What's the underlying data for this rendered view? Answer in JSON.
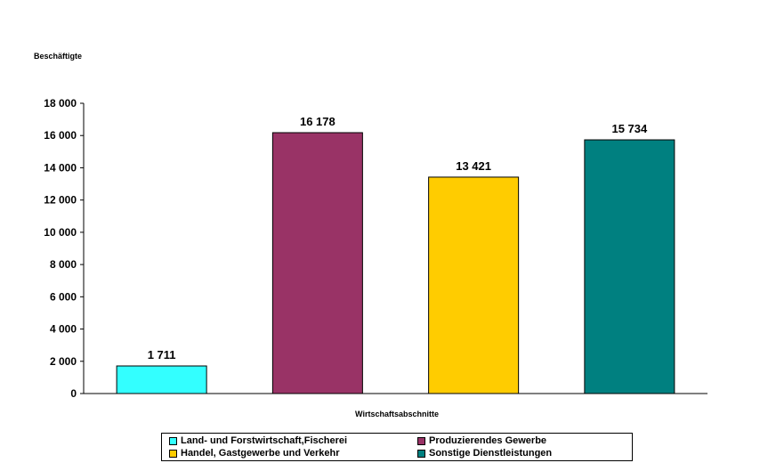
{
  "chart_data": {
    "type": "bar",
    "ylabel": "Beschäftigte",
    "xlabel": "Wirtschaftsabschnitte",
    "categories": [
      "Land- und Forstwirtschaft,Fischerei",
      "Produzierendes Gewerbe",
      "Handel, Gastgewerbe und Verkehr",
      "Sonstige Dienstleistungen"
    ],
    "values": [
      1711,
      16178,
      13421,
      15734
    ],
    "value_labels": [
      "1 711",
      "16 178",
      "13 421",
      "15 734"
    ],
    "colors": [
      "#33ffff",
      "#993366",
      "#ffcc00",
      "#008080"
    ],
    "ylim": [
      0,
      18000
    ],
    "yticks": [
      0,
      2000,
      4000,
      6000,
      8000,
      10000,
      12000,
      14000,
      16000,
      18000
    ],
    "ytick_labels": [
      "0",
      "2 000",
      "4 000",
      "6 000",
      "8 000",
      "10 000",
      "12 000",
      "14 000",
      "16 000",
      "18 000"
    ],
    "grid": false,
    "legend_position": "bottom"
  }
}
